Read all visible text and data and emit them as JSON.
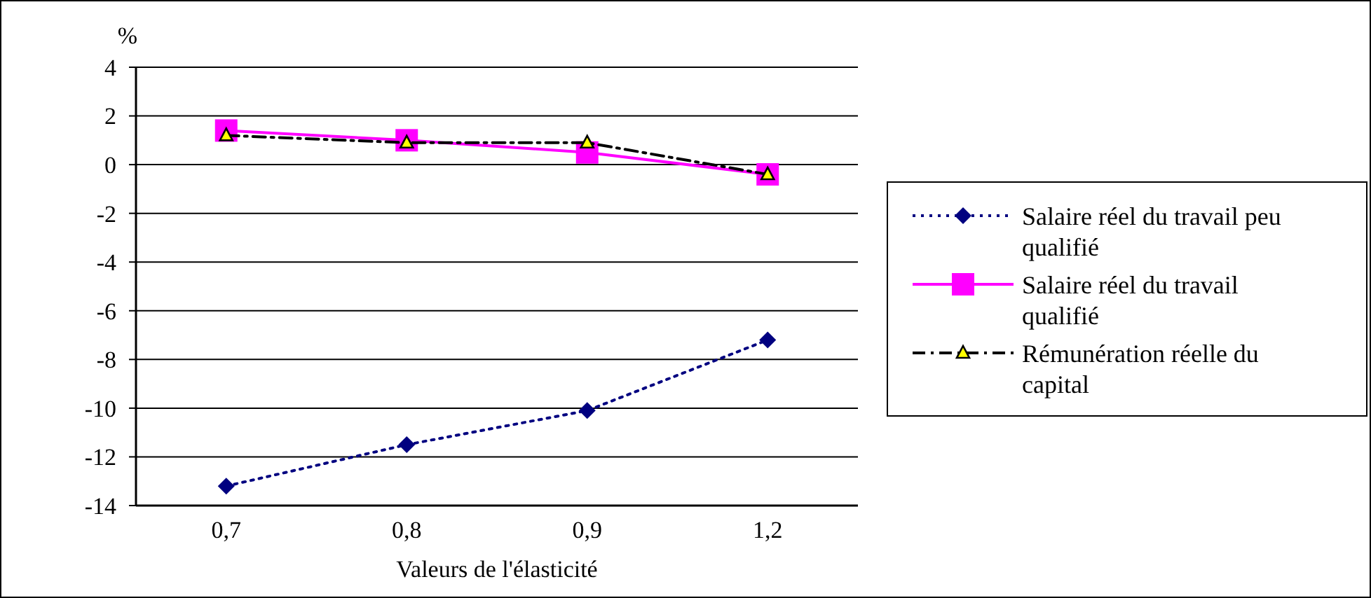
{
  "chart_data": {
    "type": "line",
    "ylabel": "%",
    "xlabel": "Valeurs de l'élasticité",
    "categories": [
      "0,7",
      "0,8",
      "0,9",
      "1,2"
    ],
    "series": [
      {
        "name": "Salaire réel du travail peu qualifié",
        "color": "#000080",
        "marker": "diamond",
        "line_style": "dotted",
        "values": [
          -13.2,
          -11.5,
          -10.1,
          -7.2
        ]
      },
      {
        "name": "Salaire réel du travail qualifié",
        "color": "#ff00ff",
        "marker": "square",
        "line_style": "solid",
        "values": [
          1.4,
          1.0,
          0.5,
          -0.4
        ]
      },
      {
        "name": "Rémunération réelle du capital",
        "color": "#000000",
        "marker": "triangle",
        "line_style": "dashdot",
        "values": [
          1.2,
          0.9,
          0.9,
          -0.4
        ]
      }
    ],
    "ylim": [
      -14,
      4
    ],
    "yticks": [
      -14,
      -12,
      -10,
      -8,
      -6,
      -4,
      -2,
      0,
      2,
      4
    ],
    "grid": "y",
    "legend": "right"
  }
}
